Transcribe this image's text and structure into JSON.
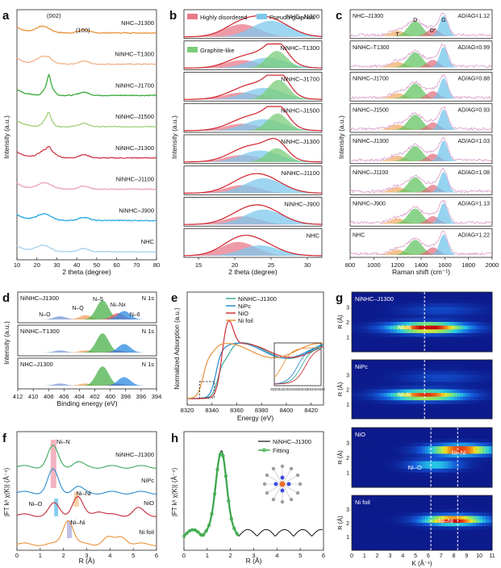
{
  "chart_data": [
    {
      "panel": "a",
      "type": "line",
      "xlabel": "2 theta (degree)",
      "ylabel": "Intensity (a.u.)",
      "xlim": [
        10,
        80
      ],
      "xticks": [
        10,
        20,
        30,
        40,
        50,
        60,
        70,
        80
      ],
      "peak_labels": [
        "(002)",
        "(100)"
      ],
      "series": [
        {
          "name": "NHC–J1300",
          "color": "#e8923a",
          "offset": 8,
          "peak_x": 23.0,
          "peak_h": 0.6,
          "sharp": 0
        },
        {
          "name": "NiNHC–T1300",
          "color": "#f0b28a",
          "offset": 7,
          "peak_x": 23.5,
          "peak_h": 0.55,
          "sharp": 0.2
        },
        {
          "name": "NiNHC–J1700",
          "color": "#3aaa3a",
          "offset": 6,
          "peak_x": 26.0,
          "peak_h": 0.85,
          "sharp": 1
        },
        {
          "name": "NiNHC–J1500",
          "color": "#9fd07a",
          "offset": 5,
          "peak_x": 25.5,
          "peak_h": 0.7,
          "sharp": 0.6
        },
        {
          "name": "NiNHC–J1300",
          "color": "#d23a4a",
          "offset": 4,
          "peak_x": 25.0,
          "peak_h": 0.65,
          "sharp": 0.4
        },
        {
          "name": "NiNHC–J1100",
          "color": "#e8a0c0",
          "offset": 3,
          "peak_x": 24.0,
          "peak_h": 0.6,
          "sharp": 0
        },
        {
          "name": "NiNHC–J900",
          "color": "#2aa8e0",
          "offset": 2,
          "peak_x": 23.5,
          "peak_h": 0.55,
          "sharp": 0
        },
        {
          "name": "NHC",
          "color": "#a8d0ea",
          "offset": 1,
          "peak_x": 23.0,
          "peak_h": 0.55,
          "sharp": 0
        }
      ]
    },
    {
      "panel": "b",
      "type": "area",
      "xlabel": "2 theta (degree)",
      "ylabel": "Intensity (a.u.)",
      "xlim": [
        13,
        32
      ],
      "xticks": [
        15,
        20,
        25,
        30
      ],
      "legend": [
        "Highly disordered",
        "Pseudo-graphitic",
        "Graphite-like"
      ],
      "colors": {
        "disordered": "#e87a8a",
        "pseudo": "#7ec8ec",
        "graphite": "#7acc7a",
        "fit": "#d0202a"
      },
      "series": [
        {
          "name": "NHC–J1300",
          "d": [
            21,
            0.55
          ],
          "p": [
            25,
            0.7
          ],
          "g": null
        },
        {
          "name": "NiNHC–T1300",
          "d": [
            21,
            0.35
          ],
          "p": [
            24.5,
            0.45
          ],
          "g": [
            25.8,
            0.75
          ]
        },
        {
          "name": "NiNHC–J1700",
          "d": [
            21,
            0.3
          ],
          "p": [
            24,
            0.5
          ],
          "g": [
            26,
            0.85
          ]
        },
        {
          "name": "NiNHC–J1500",
          "d": [
            21,
            0.3
          ],
          "p": [
            24,
            0.5
          ],
          "g": [
            25.9,
            0.75
          ]
        },
        {
          "name": "NiNHC–J1300",
          "d": [
            21,
            0.3
          ],
          "p": [
            23.5,
            0.5
          ],
          "g": [
            25.8,
            0.6
          ]
        },
        {
          "name": "NiNHC–J1100",
          "d": [
            21,
            0.35
          ],
          "p": [
            24,
            0.65
          ],
          "g": null
        },
        {
          "name": "NiNHC–J900",
          "d": [
            21,
            0.35
          ],
          "p": [
            24,
            0.65
          ],
          "g": null
        },
        {
          "name": "NHC",
          "d": [
            20.5,
            0.6
          ],
          "p": [
            23.5,
            0.45
          ],
          "g": null
        }
      ]
    },
    {
      "panel": "c",
      "type": "area",
      "xlabel": "Raman shift (cm⁻¹)",
      "ylabel": "Intensity (a.u.)",
      "xlim": [
        800,
        2000
      ],
      "xticks": [
        800,
        1000,
        1200,
        1400,
        1600,
        1800,
        2000
      ],
      "band_labels": [
        "T",
        "D",
        "D″",
        "G"
      ],
      "series": [
        {
          "name": "NHC–J1300",
          "ratio": "AD/AG=1.12"
        },
        {
          "name": "NiNHC–T1300",
          "ratio": "AD/AG=0.99"
        },
        {
          "name": "NiNHC–J1700",
          "ratio": "AD/AG=0.88"
        },
        {
          "name": "NiNHC–J1500",
          "ratio": "AD/AG=0.93"
        },
        {
          "name": "NiNHC–J1300",
          "ratio": "AD/AG=1.03"
        },
        {
          "name": "NiNHC–J1100",
          "ratio": "AD/AG=1.08"
        },
        {
          "name": "NiNHC–J900",
          "ratio": "AD/AG=1.13"
        },
        {
          "name": "NHC",
          "ratio": "AD/AG=1.22"
        }
      ]
    },
    {
      "panel": "d",
      "type": "area",
      "xlabel": "Binding energy (eV)",
      "ylabel": "Intensity (a.u.)",
      "xlim": [
        412,
        394
      ],
      "xticks": [
        412,
        410,
        408,
        406,
        404,
        402,
        400,
        398,
        396,
        394
      ],
      "peak_labels": [
        "N–O",
        "N–Q",
        "N–5",
        "Ni–Nx",
        "N–6"
      ],
      "series": [
        {
          "name": "NiNHC–J1300",
          "tag": "N 1s"
        },
        {
          "name": "NiNHC–T1300",
          "tag": "N 1s"
        },
        {
          "name": "NHC–J1300",
          "tag": "N 1s"
        }
      ]
    },
    {
      "panel": "e",
      "type": "line",
      "xlabel": "Energy (eV)",
      "ylabel": "Normalized Adsorption (a.u.)",
      "xlim": [
        8320,
        8430
      ],
      "xticks": [
        8320,
        8340,
        8360,
        8380,
        8400,
        8420
      ],
      "inset_xticks": [
        8330,
        8332,
        8334,
        8336,
        8338,
        8340,
        8342
      ],
      "series": [
        {
          "name": "NiNHC–J1300",
          "color": "#3aaa9a"
        },
        {
          "name": "NiPc",
          "color": "#2a8ad0"
        },
        {
          "name": "NiO",
          "color": "#d0303a"
        },
        {
          "name": "Ni foil",
          "color": "#e8923a"
        }
      ]
    },
    {
      "panel": "f",
      "type": "line",
      "xlabel": "R (Å)",
      "ylabel": "|FT k³ χ(K)| (Å⁻⁴)",
      "xlim": [
        0,
        6
      ],
      "xticks": [
        0,
        1,
        2,
        3,
        4,
        5,
        6
      ],
      "path_labels": [
        "Ni–N",
        "Ni–Ni",
        "Ni–O",
        "Ni–Ni"
      ],
      "series": [
        {
          "name": "NiNHC–J1300",
          "color": "#3aaa5a"
        },
        {
          "name": "NiPc",
          "color": "#2a8ad0"
        },
        {
          "name": "NiO",
          "color": "#c02a3a"
        },
        {
          "name": "Ni foil",
          "color": "#e8923a"
        }
      ]
    },
    {
      "panel": "g",
      "type": "heatmap",
      "xlabel": "K (Å⁻¹)",
      "ylabel": "R (Å)",
      "xlim": [
        0,
        11
      ],
      "ylim": [
        0,
        4
      ],
      "xticks": [
        0,
        1,
        2,
        3,
        4,
        5,
        6,
        7,
        8,
        9,
        10,
        11
      ],
      "yticks": [
        1,
        2,
        3,
        4
      ],
      "series": [
        {
          "name": "NiNHC–J1300",
          "labels": [
            "Ni–N"
          ]
        },
        {
          "name": "NiPc",
          "labels": [
            "Ni–N"
          ]
        },
        {
          "name": "NiO",
          "labels": [
            "Ni–Ni",
            "Ni–O"
          ]
        },
        {
          "name": "Ni foil",
          "labels": [
            "Ni–Ni"
          ]
        }
      ]
    },
    {
      "panel": "h",
      "type": "line",
      "xlabel": "R (Å)",
      "ylabel": "|FT k³ χ(K)| (Å⁻⁴)",
      "xlim": [
        0,
        6
      ],
      "xticks": [
        0,
        1,
        2,
        3,
        4,
        5,
        6
      ],
      "series": [
        {
          "name": "NiNHC–J1300",
          "color": "#111111"
        },
        {
          "name": "Fitting",
          "color": "#3ab04a"
        }
      ]
    }
  ]
}
